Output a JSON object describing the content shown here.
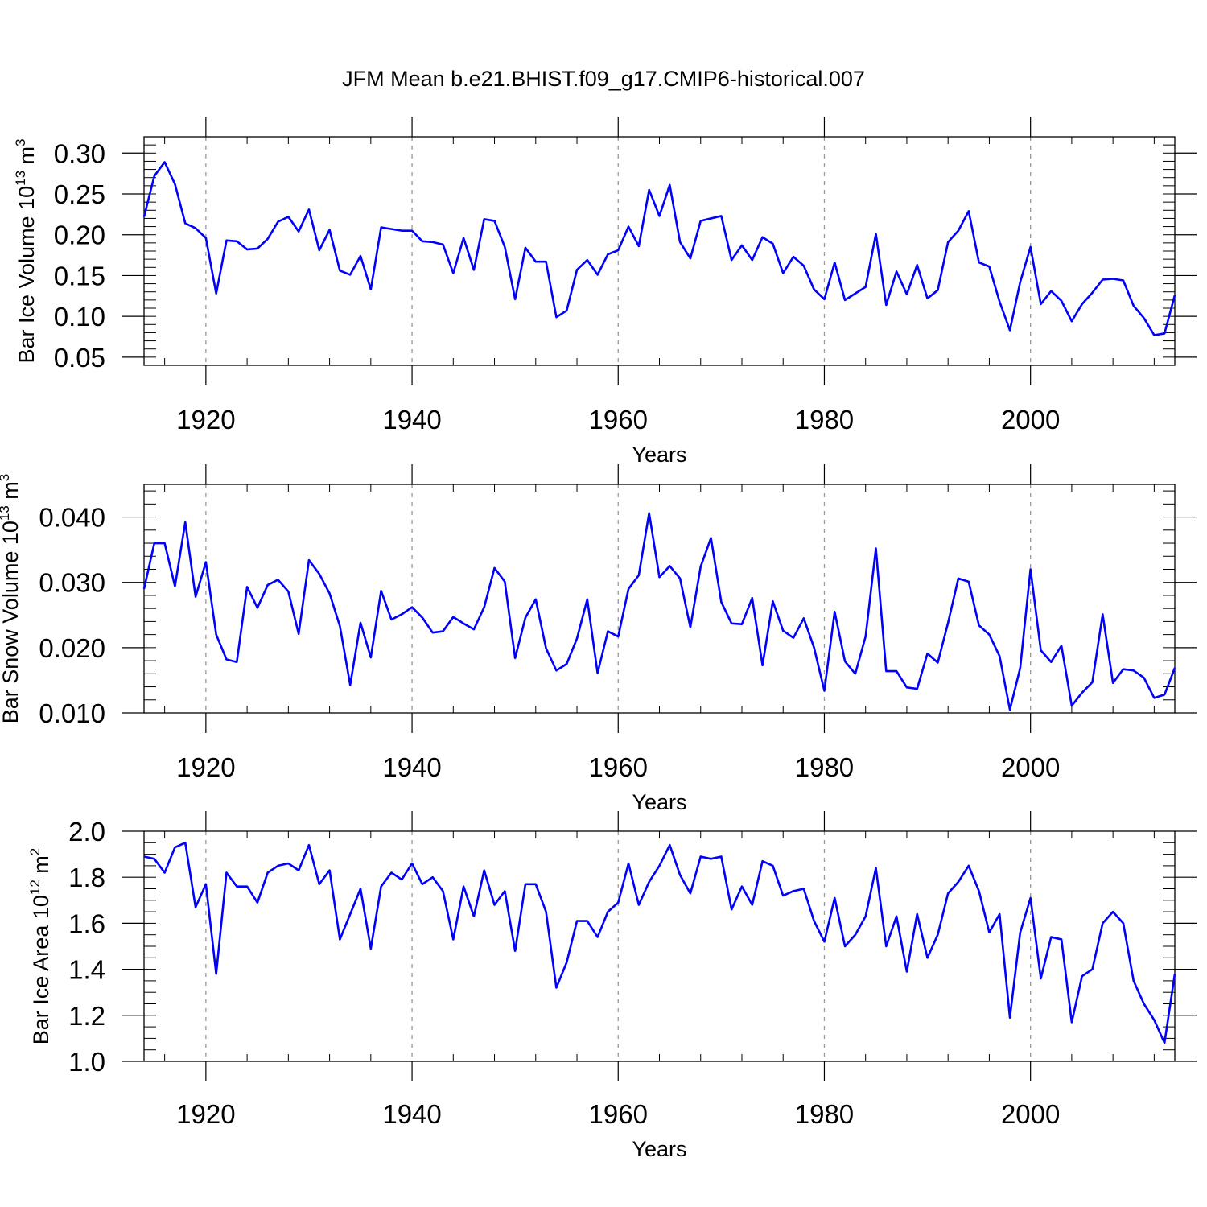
{
  "title": "JFM Mean b.e21.BHIST.f09_g17.CMIP6-historical.007",
  "colors": {
    "line": "#0000ff",
    "axis": "#000000",
    "grid": "#999999"
  },
  "chart_data": [
    {
      "type": "line",
      "ylabel_main": "Bar Ice Volume 10",
      "ylabel_exp": "13",
      "ylabel_unit": " m",
      "ylabel_unit_exp": "3",
      "xlabel": "Years",
      "xlim": [
        1914,
        2014
      ],
      "ylim": [
        0.04,
        0.32
      ],
      "yticks": [
        0.05,
        0.1,
        0.15,
        0.2,
        0.25,
        0.3
      ],
      "ytick_labels": [
        "0.05",
        "0.10",
        "0.15",
        "0.20",
        "0.25",
        "0.30"
      ],
      "ytick_minor_step": 0.01,
      "xticks": [
        1920,
        1940,
        1960,
        1980,
        2000
      ],
      "xtick_labels": [
        "1920",
        "1940",
        "1960",
        "1980",
        "2000"
      ],
      "xtick_minor_step": 4,
      "series": [
        {
          "name": "Bar Ice Volume",
          "x_start": 1914,
          "values": [
            0.222,
            0.272,
            0.289,
            0.262,
            0.214,
            0.208,
            0.196,
            0.128,
            0.193,
            0.192,
            0.182,
            0.183,
            0.195,
            0.216,
            0.222,
            0.204,
            0.231,
            0.181,
            0.206,
            0.156,
            0.151,
            0.174,
            0.133,
            0.209,
            0.207,
            0.205,
            0.205,
            0.192,
            0.191,
            0.188,
            0.153,
            0.196,
            0.157,
            0.219,
            0.217,
            0.185,
            0.121,
            0.184,
            0.167,
            0.167,
            0.099,
            0.107,
            0.157,
            0.169,
            0.151,
            0.176,
            0.181,
            0.21,
            0.186,
            0.255,
            0.223,
            0.261,
            0.191,
            0.171,
            0.217,
            0.22,
            0.223,
            0.169,
            0.187,
            0.169,
            0.197,
            0.189,
            0.153,
            0.173,
            0.162,
            0.133,
            0.121,
            0.166,
            0.12,
            0.128,
            0.136,
            0.201,
            0.114,
            0.155,
            0.127,
            0.163,
            0.122,
            0.132,
            0.191,
            0.205,
            0.229,
            0.166,
            0.161,
            0.118,
            0.083,
            0.142,
            0.185,
            0.115,
            0.131,
            0.119,
            0.094,
            0.115,
            0.129,
            0.145,
            0.146,
            0.144,
            0.113,
            0.098,
            0.077,
            0.079,
            0.126
          ]
        }
      ]
    },
    {
      "type": "line",
      "ylabel_main": "Bar Snow Volume 10",
      "ylabel_exp": "13",
      "ylabel_unit": " m",
      "ylabel_unit_exp": "3",
      "xlabel": "Years",
      "xlim": [
        1914,
        2014
      ],
      "ylim": [
        0.01,
        0.045
      ],
      "yticks": [
        0.01,
        0.02,
        0.03,
        0.04
      ],
      "ytick_labels": [
        "0.010",
        "0.020",
        "0.030",
        "0.040"
      ],
      "ytick_minor_step": 0.002,
      "xticks": [
        1920,
        1940,
        1960,
        1980,
        2000
      ],
      "xtick_labels": [
        "1920",
        "1940",
        "1960",
        "1980",
        "2000"
      ],
      "xtick_minor_step": 4,
      "series": [
        {
          "name": "Bar Snow Volume",
          "x_start": 1914,
          "values": [
            0.029,
            0.036,
            0.036,
            0.0294,
            0.0392,
            0.0278,
            0.0331,
            0.022,
            0.0182,
            0.0178,
            0.0293,
            0.0261,
            0.0296,
            0.0304,
            0.0286,
            0.0221,
            0.0334,
            0.0313,
            0.0283,
            0.0233,
            0.0143,
            0.0238,
            0.0185,
            0.0287,
            0.0243,
            0.0251,
            0.0262,
            0.0246,
            0.0223,
            0.0225,
            0.0247,
            0.0237,
            0.0228,
            0.0262,
            0.0322,
            0.0301,
            0.0184,
            0.0246,
            0.0274,
            0.0199,
            0.0165,
            0.0175,
            0.0214,
            0.0274,
            0.0161,
            0.0225,
            0.0217,
            0.029,
            0.0311,
            0.0406,
            0.0308,
            0.0325,
            0.0306,
            0.0231,
            0.0324,
            0.0368,
            0.027,
            0.0237,
            0.0236,
            0.0276,
            0.0173,
            0.0271,
            0.0226,
            0.0215,
            0.0245,
            0.02,
            0.0134,
            0.0255,
            0.0179,
            0.016,
            0.0217,
            0.0352,
            0.0164,
            0.0164,
            0.0139,
            0.0137,
            0.0191,
            0.0177,
            0.0238,
            0.0306,
            0.0301,
            0.0234,
            0.022,
            0.0187,
            0.0105,
            0.0169,
            0.032,
            0.0196,
            0.0178,
            0.0203,
            0.0111,
            0.0131,
            0.0147,
            0.0251,
            0.0146,
            0.0167,
            0.0165,
            0.0154,
            0.0123,
            0.0128,
            0.0169
          ]
        }
      ]
    },
    {
      "type": "line",
      "ylabel_main": "Bar Ice Area 10",
      "ylabel_exp": "12",
      "ylabel_unit": " m",
      "ylabel_unit_exp": "2",
      "xlabel": "Years",
      "xlim": [
        1914,
        2014
      ],
      "ylim": [
        1.0,
        2.0
      ],
      "yticks": [
        1.0,
        1.2,
        1.4,
        1.6,
        1.8,
        2.0
      ],
      "ytick_labels": [
        "1.0",
        "1.2",
        "1.4",
        "1.6",
        "1.8",
        "2.0"
      ],
      "ytick_minor_step": 0.05,
      "xticks": [
        1920,
        1940,
        1960,
        1980,
        2000
      ],
      "xtick_labels": [
        "1920",
        "1940",
        "1960",
        "1980",
        "2000"
      ],
      "xtick_minor_step": 4,
      "series": [
        {
          "name": "Bar Ice Area",
          "x_start": 1914,
          "values": [
            1.89,
            1.88,
            1.82,
            1.93,
            1.95,
            1.67,
            1.77,
            1.38,
            1.82,
            1.76,
            1.76,
            1.69,
            1.82,
            1.85,
            1.86,
            1.83,
            1.94,
            1.77,
            1.83,
            1.53,
            1.64,
            1.75,
            1.49,
            1.76,
            1.82,
            1.79,
            1.86,
            1.77,
            1.8,
            1.74,
            1.53,
            1.76,
            1.63,
            1.83,
            1.68,
            1.74,
            1.48,
            1.77,
            1.77,
            1.65,
            1.32,
            1.43,
            1.61,
            1.61,
            1.54,
            1.65,
            1.69,
            1.86,
            1.68,
            1.78,
            1.85,
            1.94,
            1.81,
            1.73,
            1.89,
            1.88,
            1.89,
            1.66,
            1.76,
            1.68,
            1.87,
            1.85,
            1.72,
            1.74,
            1.75,
            1.61,
            1.52,
            1.71,
            1.5,
            1.55,
            1.63,
            1.84,
            1.5,
            1.63,
            1.39,
            1.64,
            1.45,
            1.55,
            1.73,
            1.78,
            1.85,
            1.74,
            1.56,
            1.64,
            1.19,
            1.56,
            1.71,
            1.36,
            1.54,
            1.53,
            1.17,
            1.37,
            1.4,
            1.6,
            1.65,
            1.6,
            1.35,
            1.25,
            1.18,
            1.08,
            1.38
          ]
        }
      ]
    }
  ]
}
